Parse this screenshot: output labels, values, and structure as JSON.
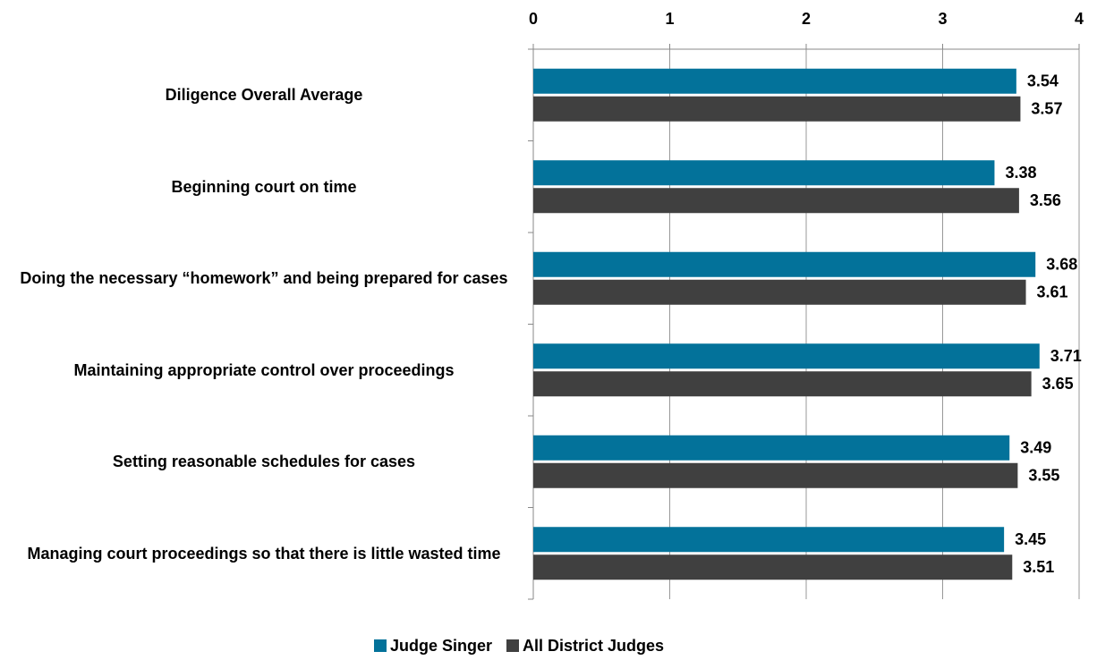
{
  "chart_data": {
    "type": "bar",
    "orientation": "horizontal",
    "categories": [
      "Diligence Overall Average",
      "Beginning court on time",
      "Doing the necessary “homework” and being prepared for cases",
      "Maintaining appropriate control over proceedings",
      "Setting reasonable schedules for cases",
      "Managing court proceedings so that there is little wasted time"
    ],
    "series": [
      {
        "name": "Judge Singer",
        "color": "#03729a",
        "values": [
          3.54,
          3.38,
          3.68,
          3.71,
          3.49,
          3.45
        ]
      },
      {
        "name": "All District Judges",
        "color": "#404040",
        "values": [
          3.57,
          3.56,
          3.61,
          3.65,
          3.55,
          3.51
        ]
      }
    ],
    "xlim": [
      0,
      4
    ],
    "xticks": [
      0,
      1,
      2,
      3,
      4
    ],
    "grid": true,
    "legend": "bottom"
  }
}
